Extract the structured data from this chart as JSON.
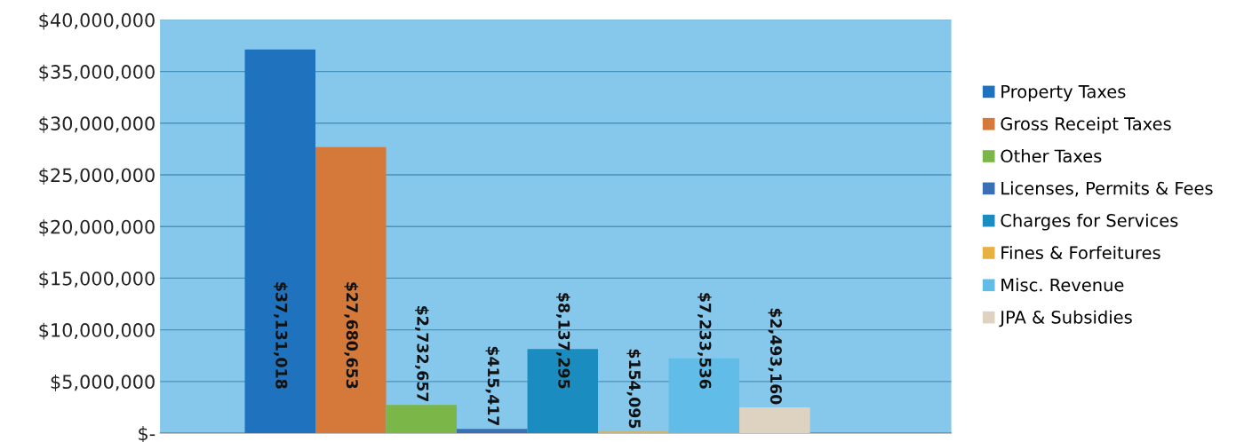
{
  "chart_data": {
    "type": "bar",
    "categories": [
      null
    ],
    "series": [
      {
        "name": "Property Taxes",
        "color": "#1f72bd",
        "values": [
          37131018
        ],
        "value_labels": [
          "$37,131,018"
        ]
      },
      {
        "name": "Gross Receipt Taxes",
        "color": "#d4793a",
        "values": [
          27680653
        ],
        "value_labels": [
          "$27,680,653"
        ]
      },
      {
        "name": "Other Taxes",
        "color": "#7ab648",
        "values": [
          2732657
        ],
        "value_labels": [
          "$2,732,657"
        ]
      },
      {
        "name": "Licenses, Permits & Fees",
        "color": "#3a6fb5",
        "values": [
          415417
        ],
        "value_labels": [
          "$415,417"
        ]
      },
      {
        "name": "Charges for Services",
        "color": "#1a8cc0",
        "values": [
          8137295
        ],
        "value_labels": [
          "$8,137,295"
        ]
      },
      {
        "name": "Fines & Forfeitures",
        "color": "#e8b040",
        "values": [
          154095
        ],
        "value_labels": [
          "$154,095"
        ]
      },
      {
        "name": "Misc. Revenue",
        "color": "#62bce8",
        "values": [
          7233536
        ],
        "value_labels": [
          "$7,233,536"
        ]
      },
      {
        "name": "JPA & Subsidies",
        "color": "#ddd3c0",
        "values": [
          2493160
        ],
        "value_labels": [
          "$2,493,160"
        ]
      }
    ],
    "ylim": [
      0,
      40000000
    ],
    "yticks": [
      {
        "value": 0,
        "label": "$-"
      },
      {
        "value": 5000000,
        "label": "$5,000,000"
      },
      {
        "value": 10000000,
        "label": "$10,000,000"
      },
      {
        "value": 15000000,
        "label": "$15,000,000"
      },
      {
        "value": 20000000,
        "label": "$20,000,000"
      },
      {
        "value": 25000000,
        "label": "$25,000,000"
      },
      {
        "value": 30000000,
        "label": "$30,000,000"
      },
      {
        "value": 35000000,
        "label": "$35,000,000"
      },
      {
        "value": 40000000,
        "label": "$40,000,000"
      }
    ],
    "grid": "y",
    "legend": "right"
  }
}
